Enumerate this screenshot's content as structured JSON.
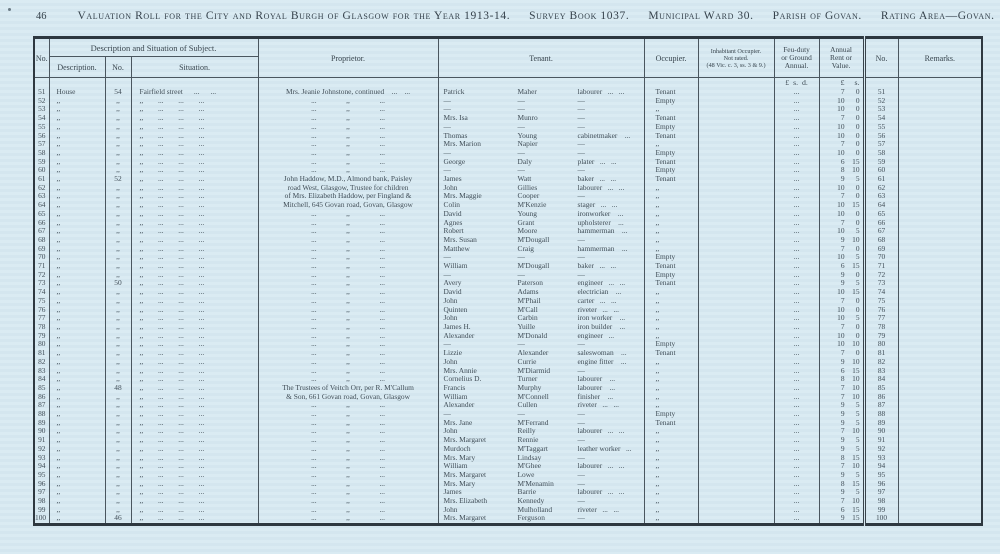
{
  "page": {
    "page_number": "46",
    "title": "Valuation Roll for the City and Royal Burgh of Glasgow for the Year 1913-14.",
    "survey_book": "Survey Book 1037.",
    "municipal_ward": "Municipal Ward 30.",
    "parish": "Parish of Govan.",
    "rating_area": "Rating Area—Govan."
  },
  "table": {
    "headers": {
      "no_left": "No.",
      "subject_group": "Description and Situation of Subject.",
      "description": "Description.",
      "house_no": "No.",
      "situation": "Situation.",
      "proprietor": "Proprietor.",
      "tenant": "Tenant.",
      "occupier": "Occupier.",
      "inhabitant_occupier": "Inhabitant Occupier.\nNot rated.\n(48 Vic. c. 3, ss. 3 & 9.)",
      "feu_duty": "Feu-duty\nor Ground\nAnnual.",
      "annual_rent": "Annual\nRent or\nValue.",
      "no_right": "No.",
      "remarks": "Remarks."
    },
    "units": {
      "feu": "£  s.  d.",
      "rent_pounds": "£",
      "rent_shillings": "s."
    },
    "row_fields": [
      "no",
      "description",
      "house_no",
      "situation",
      "proprietor",
      "tenant_first",
      "tenant_surname",
      "tenant_occupation",
      "occupier",
      "feu",
      "rent_pounds",
      "rent_shillings",
      "no_right",
      "remarks"
    ],
    "rows": [
      [
        "51",
        "House",
        "54",
        "Fairfield street      ...      ...",
        "Mrs. Jeanie Johnstone, continued    ...    ...",
        "Patrick",
        "Maher",
        "labourer   ...   ...",
        "Tenant",
        "...",
        "7",
        "0",
        "51",
        ""
      ],
      [
        "52",
        ",,",
        ",,",
        ",,        ...        ...        ...",
        "...                ,,                ...",
        "—",
        "—",
        "—",
        "Empty",
        "...",
        "10",
        "0",
        "52",
        ""
      ],
      [
        "53",
        ",,",
        ",,",
        ",,        ...        ...        ...",
        "...                ,,                ...",
        "—",
        "—",
        "—",
        ",,",
        "...",
        "10",
        "0",
        "53",
        ""
      ],
      [
        "54",
        ",,",
        ",,",
        ",,        ...        ...        ...",
        "...                ,,                ...",
        "Mrs. Isa",
        "Munro",
        "—",
        "Tenant",
        "...",
        "7",
        "0",
        "54",
        ""
      ],
      [
        "55",
        ",,",
        ",,",
        ",,        ...        ...        ...",
        "...                ,,                ...",
        "—",
        "—",
        "—",
        "Empty",
        "...",
        "10",
        "0",
        "55",
        ""
      ],
      [
        "56",
        ",,",
        ",,",
        ",,        ...        ...        ...",
        "...                ,,                ...",
        "Thomas",
        "Young",
        "cabinetmaker    ...",
        "Tenant",
        "...",
        "10",
        "0",
        "56",
        ""
      ],
      [
        "57",
        ",,",
        ",,",
        ",,        ...        ...        ...",
        "...                ,,                ...",
        "Mrs. Marion",
        "Napier",
        "—",
        ",,",
        "...",
        "7",
        "0",
        "57",
        ""
      ],
      [
        "58",
        ",,",
        ",,",
        ",,        ...        ...        ...",
        "...                ,,                ...",
        "—",
        "—",
        "—",
        "Empty",
        "...",
        "10",
        "0",
        "58",
        ""
      ],
      [
        "59",
        ",,",
        ",,",
        ",,        ...        ...        ...",
        "...                ,,                ...",
        "George",
        "Daly",
        "plater   ...   ...",
        "Tenant",
        "...",
        "6",
        "15",
        "59",
        ""
      ],
      [
        "60",
        ",,",
        ",,",
        ",,        ...        ...        ...",
        "...                ,,                ...",
        "—",
        "—",
        "—",
        "Empty",
        "...",
        "8",
        "10",
        "60",
        ""
      ],
      [
        "61",
        ",,",
        "52",
        ",,        ...        ...        ...",
        "John Haddow, M.D., Almond bank, Paisley",
        "James",
        "Watt",
        "baker   ...   ...",
        "Tenant",
        "...",
        "9",
        "5",
        "61",
        ""
      ],
      [
        "62",
        ",,",
        ",,",
        ",,        ...        ...        ...",
        "road West, Glasgow, Trustee for children",
        "John",
        "Gillies",
        "labourer   ...   ...",
        ",,",
        "...",
        "10",
        "0",
        "62",
        ""
      ],
      [
        "63",
        ",,",
        ",,",
        ",,        ...        ...        ...",
        "of Mrs. Elizabeth Haddow, per Fingland &",
        "Mrs. Maggie",
        "Cooper",
        "—",
        ",,",
        "...",
        "7",
        "0",
        "63",
        ""
      ],
      [
        "64",
        ",,",
        ",,",
        ",,        ...        ...        ...",
        "Mitchell, 645 Govan road, Govan, Glasgow",
        "Colin",
        "M'Kenzie",
        "stager   ...   ...",
        ",,",
        "...",
        "10",
        "15",
        "64",
        ""
      ],
      [
        "65",
        ",,",
        ",,",
        ",,        ...        ...        ...",
        "...                ,,                ...",
        "David",
        "Young",
        "ironworker    ...",
        ",,",
        "...",
        "10",
        "0",
        "65",
        ""
      ],
      [
        "66",
        ",,",
        ",,",
        ",,        ...        ...        ...",
        "...                ,,                ...",
        "Agnes",
        "Grant",
        "upholsterer    ...",
        ",,",
        "...",
        "7",
        "0",
        "66",
        ""
      ],
      [
        "67",
        ",,",
        ",,",
        ",,        ...        ...        ...",
        "...                ,,                ...",
        "Robert",
        "Moore",
        "hammerman    ...",
        ",,",
        "...",
        "10",
        "5",
        "67",
        ""
      ],
      [
        "68",
        ",,",
        ",,",
        ",,        ...        ...        ...",
        "...                ,,                ...",
        "Mrs. Susan",
        "M'Dougall",
        "—",
        ",,",
        "...",
        "9",
        "10",
        "68",
        ""
      ],
      [
        "69",
        ",,",
        ",,",
        ",,        ...        ...        ...",
        "...                ,,                ...",
        "Matthew",
        "Craig",
        "hammerman    ...",
        ",,",
        "...",
        "7",
        "0",
        "69",
        ""
      ],
      [
        "70",
        ",,",
        ",,",
        ",,        ...        ...        ...",
        "...                ,,                ...",
        "—",
        "—",
        "—",
        "Empty",
        "...",
        "10",
        "5",
        "70",
        ""
      ],
      [
        "71",
        ",,",
        ",,",
        ",,        ...        ...        ...",
        "...                ,,                ...",
        "William",
        "M'Dougall",
        "baker   ...   ...",
        "Tenant",
        "...",
        "6",
        "15",
        "71",
        ""
      ],
      [
        "72",
        ",,",
        ",,",
        ",,        ...        ...        ...",
        "...                ,,                ...",
        "—",
        "—",
        "—",
        "Empty",
        "...",
        "9",
        "0",
        "72",
        ""
      ],
      [
        "73",
        ",,",
        "50",
        ",,        ...        ...        ...",
        "...                ,,                ...",
        "Avery",
        "Paterson",
        "engineer   ...   ...",
        "Tenant",
        "...",
        "9",
        "5",
        "73",
        ""
      ],
      [
        "74",
        ",,",
        ",,",
        ",,        ...        ...        ...",
        "...                ,,                ...",
        "David",
        "Adams",
        "electrician    ...",
        ",,",
        "...",
        "10",
        "15",
        "74",
        ""
      ],
      [
        "75",
        ",,",
        ",,",
        ",,        ...        ...        ...",
        "...                ,,                ...",
        "John",
        "M'Phail",
        "carter   ...   ...",
        ",,",
        "...",
        "7",
        "0",
        "75",
        ""
      ],
      [
        "76",
        ",,",
        ",,",
        ",,        ...        ...        ...",
        "...                ,,                ...",
        "Quinten",
        "M'Call",
        "riveter   ...   ...",
        ",,",
        "...",
        "10",
        "0",
        "76",
        ""
      ],
      [
        "77",
        ",,",
        ",,",
        ",,        ...        ...        ...",
        "...                ,,                ...",
        "John",
        "Carbin",
        "iron worker    ...",
        ",,",
        "...",
        "10",
        "5",
        "77",
        ""
      ],
      [
        "78",
        ",,",
        ",,",
        ",,        ...        ...        ...",
        "...                ,,                ...",
        "James H.",
        "Yuille",
        "iron builder    ...",
        ",,",
        "...",
        "7",
        "0",
        "78",
        ""
      ],
      [
        "79",
        ",,",
        ",,",
        ",,        ...        ...        ...",
        "...                ,,                ...",
        "Alexander",
        "M'Donald",
        "engineer   ...",
        ",,",
        "...",
        "10",
        "0",
        "79",
        ""
      ],
      [
        "80",
        ",,",
        ",,",
        ",,        ...        ...        ...",
        "...                ,,                ...",
        "—",
        "—",
        "—",
        "Empty",
        "...",
        "10",
        "10",
        "80",
        ""
      ],
      [
        "81",
        ",,",
        ",,",
        ",,        ...        ...        ...",
        "...                ,,                ...",
        "Lizzie",
        "Alexander",
        "saleswoman    ...",
        "Tenant",
        "...",
        "7",
        "0",
        "81",
        ""
      ],
      [
        "82",
        ",,",
        ",,",
        ",,        ...        ...        ...",
        "...                ,,                ...",
        "John",
        "Currie",
        "engine fitter    ...",
        ",,",
        "...",
        "9",
        "10",
        "82",
        ""
      ],
      [
        "83",
        ",,",
        ",,",
        ",,        ...        ...        ...",
        "...                ,,                ...",
        "Mrs. Annie",
        "M'Diarmid",
        "—",
        ",,",
        "...",
        "6",
        "15",
        "83",
        ""
      ],
      [
        "84",
        ",,",
        ",,",
        ",,        ...        ...        ...",
        "...                ,,                ...",
        "Cornelius D.",
        "Turner",
        "labourer    ...",
        ",,",
        "...",
        "8",
        "10",
        "84",
        ""
      ],
      [
        "85",
        ",,",
        "48",
        ",,        ...        ...        ...",
        "The Trustees of Veitch Orr, per R. M'Callum",
        "Francis",
        "Murphy",
        "labourer    ...",
        ",,",
        "...",
        "7",
        "10",
        "85",
        ""
      ],
      [
        "86",
        ",,",
        ",,",
        ",,        ...        ...        ...",
        "& Son, 661 Govan road, Govan, Glasgow",
        "William",
        "M'Connell",
        "finisher    ...",
        ",,",
        "...",
        "7",
        "10",
        "86",
        ""
      ],
      [
        "87",
        ",,",
        ",,",
        ",,        ...        ...        ...",
        "...                ,,                ...",
        "Alexander",
        "Cullen",
        "riveter   ...   ...",
        ",,",
        "...",
        "9",
        "5",
        "87",
        ""
      ],
      [
        "88",
        ",,",
        ",,",
        ",,        ...        ...        ...",
        "...                ,,                ...",
        "—",
        "—",
        "—",
        "Empty",
        "...",
        "9",
        "5",
        "88",
        ""
      ],
      [
        "89",
        ",,",
        ",,",
        ",,        ...        ...        ...",
        "...                ,,                ...",
        "Mrs. Jane",
        "M'Ferrand",
        "—",
        "Tenant",
        "...",
        "9",
        "5",
        "89",
        ""
      ],
      [
        "90",
        ",,",
        ",,",
        ",,        ...        ...        ...",
        "...                ,,                ...",
        "John",
        "Reilly",
        "labourer   ...   ...",
        ",,",
        "...",
        "7",
        "10",
        "90",
        ""
      ],
      [
        "91",
        ",,",
        ",,",
        ",,        ...        ...        ...",
        "...                ,,                ...",
        "Mrs. Margaret",
        "Rennie",
        "—",
        ",,",
        "...",
        "9",
        "5",
        "91",
        ""
      ],
      [
        "92",
        ",,",
        ",,",
        ",,        ...        ...        ...",
        "...                ,,                ...",
        "Murdoch",
        "M'Taggart",
        "leather worker   ...",
        ",,",
        "...",
        "9",
        "5",
        "92",
        ""
      ],
      [
        "93",
        ",,",
        ",,",
        ",,        ...        ...        ...",
        "...                ,,                ...",
        "Mrs. Mary",
        "Lindsay",
        "—",
        ",,",
        "...",
        "8",
        "15",
        "93",
        ""
      ],
      [
        "94",
        ",,",
        ",,",
        ",,        ...        ...        ...",
        "...                ,,                ...",
        "William",
        "M'Ghee",
        "labourer   ...   ...",
        ",,",
        "...",
        "7",
        "10",
        "94",
        ""
      ],
      [
        "95",
        ",,",
        ",,",
        ",,        ...        ...        ...",
        "...                ,,                ...",
        "Mrs. Margaret",
        "Lowe",
        "—",
        ",,",
        "...",
        "9",
        "5",
        "95",
        ""
      ],
      [
        "96",
        ",,",
        ",,",
        ",,        ...        ...        ...",
        "...                ,,                ...",
        "Mrs. Mary",
        "M'Menamin",
        "—",
        ",,",
        "...",
        "8",
        "15",
        "96",
        ""
      ],
      [
        "97",
        ",,",
        ",,",
        ",,        ...        ...        ...",
        "...                ,,                ...",
        "James",
        "Barrie",
        "labourer   ...   ...",
        ",,",
        "...",
        "9",
        "5",
        "97",
        ""
      ],
      [
        "98",
        ",,",
        ",,",
        ",,        ...        ...        ...",
        "...                ,,                ...",
        "Mrs. Elizabeth",
        "Kennedy",
        "—",
        ",,",
        "...",
        "7",
        "10",
        "98",
        ""
      ],
      [
        "99",
        ",,",
        ",,",
        ",,        ...        ...        ...",
        "...                ,,                ...",
        "John",
        "Mulholland",
        "riveter   ...   ...",
        ",,",
        "...",
        "6",
        "15",
        "99",
        ""
      ],
      [
        "100",
        ",,",
        "46",
        ",,        ...        ...        ...",
        "...                ,,                ...",
        "Mrs. Margaret",
        "Ferguson",
        "—",
        ",,",
        "...",
        "9",
        "15",
        "100",
        ""
      ]
    ]
  }
}
